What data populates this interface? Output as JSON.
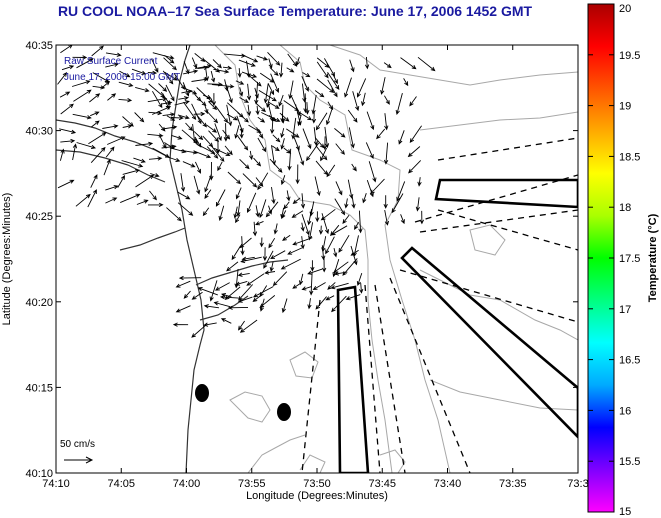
{
  "title": "RU COOL  NOAA–17  Sea Surface Temperature:  June 17, 2006 1452 GMT",
  "overlay": {
    "line1": "Raw Surface Current",
    "line2": "June 17, 2006 15:00 GMT"
  },
  "scale_label": "50 cm/s",
  "axes": {
    "xlabel": "Longitude (Degrees:Minutes)",
    "ylabel": "Latitude (Degrees:Minutes)",
    "x_ticks": [
      "74:10",
      "74:05",
      "74:00",
      "73:55",
      "73:50",
      "73:45",
      "73:40",
      "73:35",
      "73:3"
    ],
    "y_ticks": [
      "40:10",
      "40:15",
      "40:20",
      "40:25",
      "40:30",
      "40:35"
    ]
  },
  "colorbar": {
    "label": "Temperature (°C)",
    "ticks": [
      "15",
      "15.5",
      "16",
      "16.5",
      "17",
      "17.5",
      "18",
      "18.5",
      "19",
      "19.5",
      "20"
    ],
    "colors": [
      "#ff00ff",
      "#8000ff",
      "#0000ff",
      "#00aaff",
      "#00ffff",
      "#00ff80",
      "#00ff00",
      "#aaff00",
      "#ffff00",
      "#ffaa00",
      "#ff5500",
      "#ff0000",
      "#aa0000"
    ]
  }
}
